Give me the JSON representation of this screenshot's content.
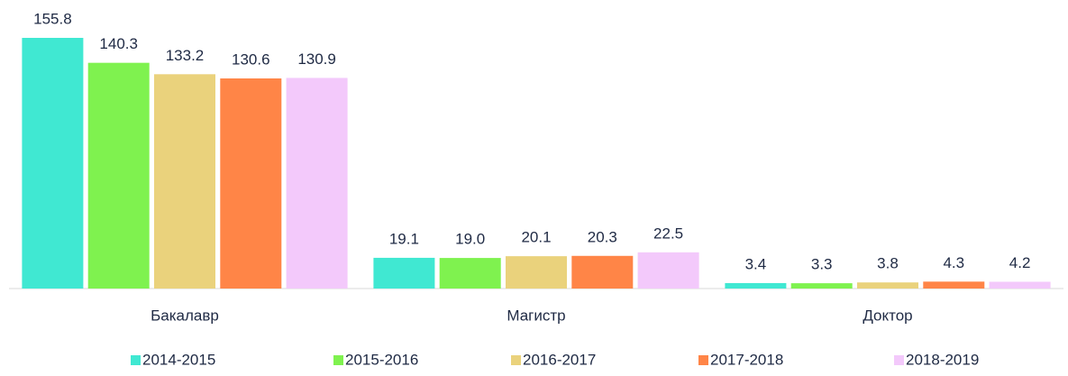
{
  "chart_data": {
    "type": "bar",
    "categories": [
      "Бакалавр",
      "Магистр",
      "Доктор"
    ],
    "series": [
      {
        "name": "2014-2015",
        "color": "#40e8d2",
        "values": [
          155.8,
          19.1,
          3.4
        ],
        "value_labels": [
          "155.8",
          "19.1",
          "3.4"
        ]
      },
      {
        "name": "2015-2016",
        "color": "#7ff24f",
        "values": [
          140.3,
          19.0,
          3.3
        ],
        "value_labels": [
          "140.3",
          "19.0",
          "3.3"
        ]
      },
      {
        "name": "2016-2017",
        "color": "#ead27c",
        "values": [
          133.2,
          20.1,
          3.8
        ],
        "value_labels": [
          "133.2",
          "20.1",
          "3.8"
        ]
      },
      {
        "name": "2017-2018",
        "color": "#ff8547",
        "values": [
          130.6,
          20.3,
          4.3
        ],
        "value_labels": [
          "130.6",
          "20.3",
          "4.3"
        ]
      },
      {
        "name": "2018-2019",
        "color": "#f3c9fb",
        "values": [
          130.9,
          22.5,
          4.2
        ],
        "value_labels": [
          "130.9",
          "22.5",
          "4.2"
        ]
      }
    ],
    "legend": "bottom"
  }
}
